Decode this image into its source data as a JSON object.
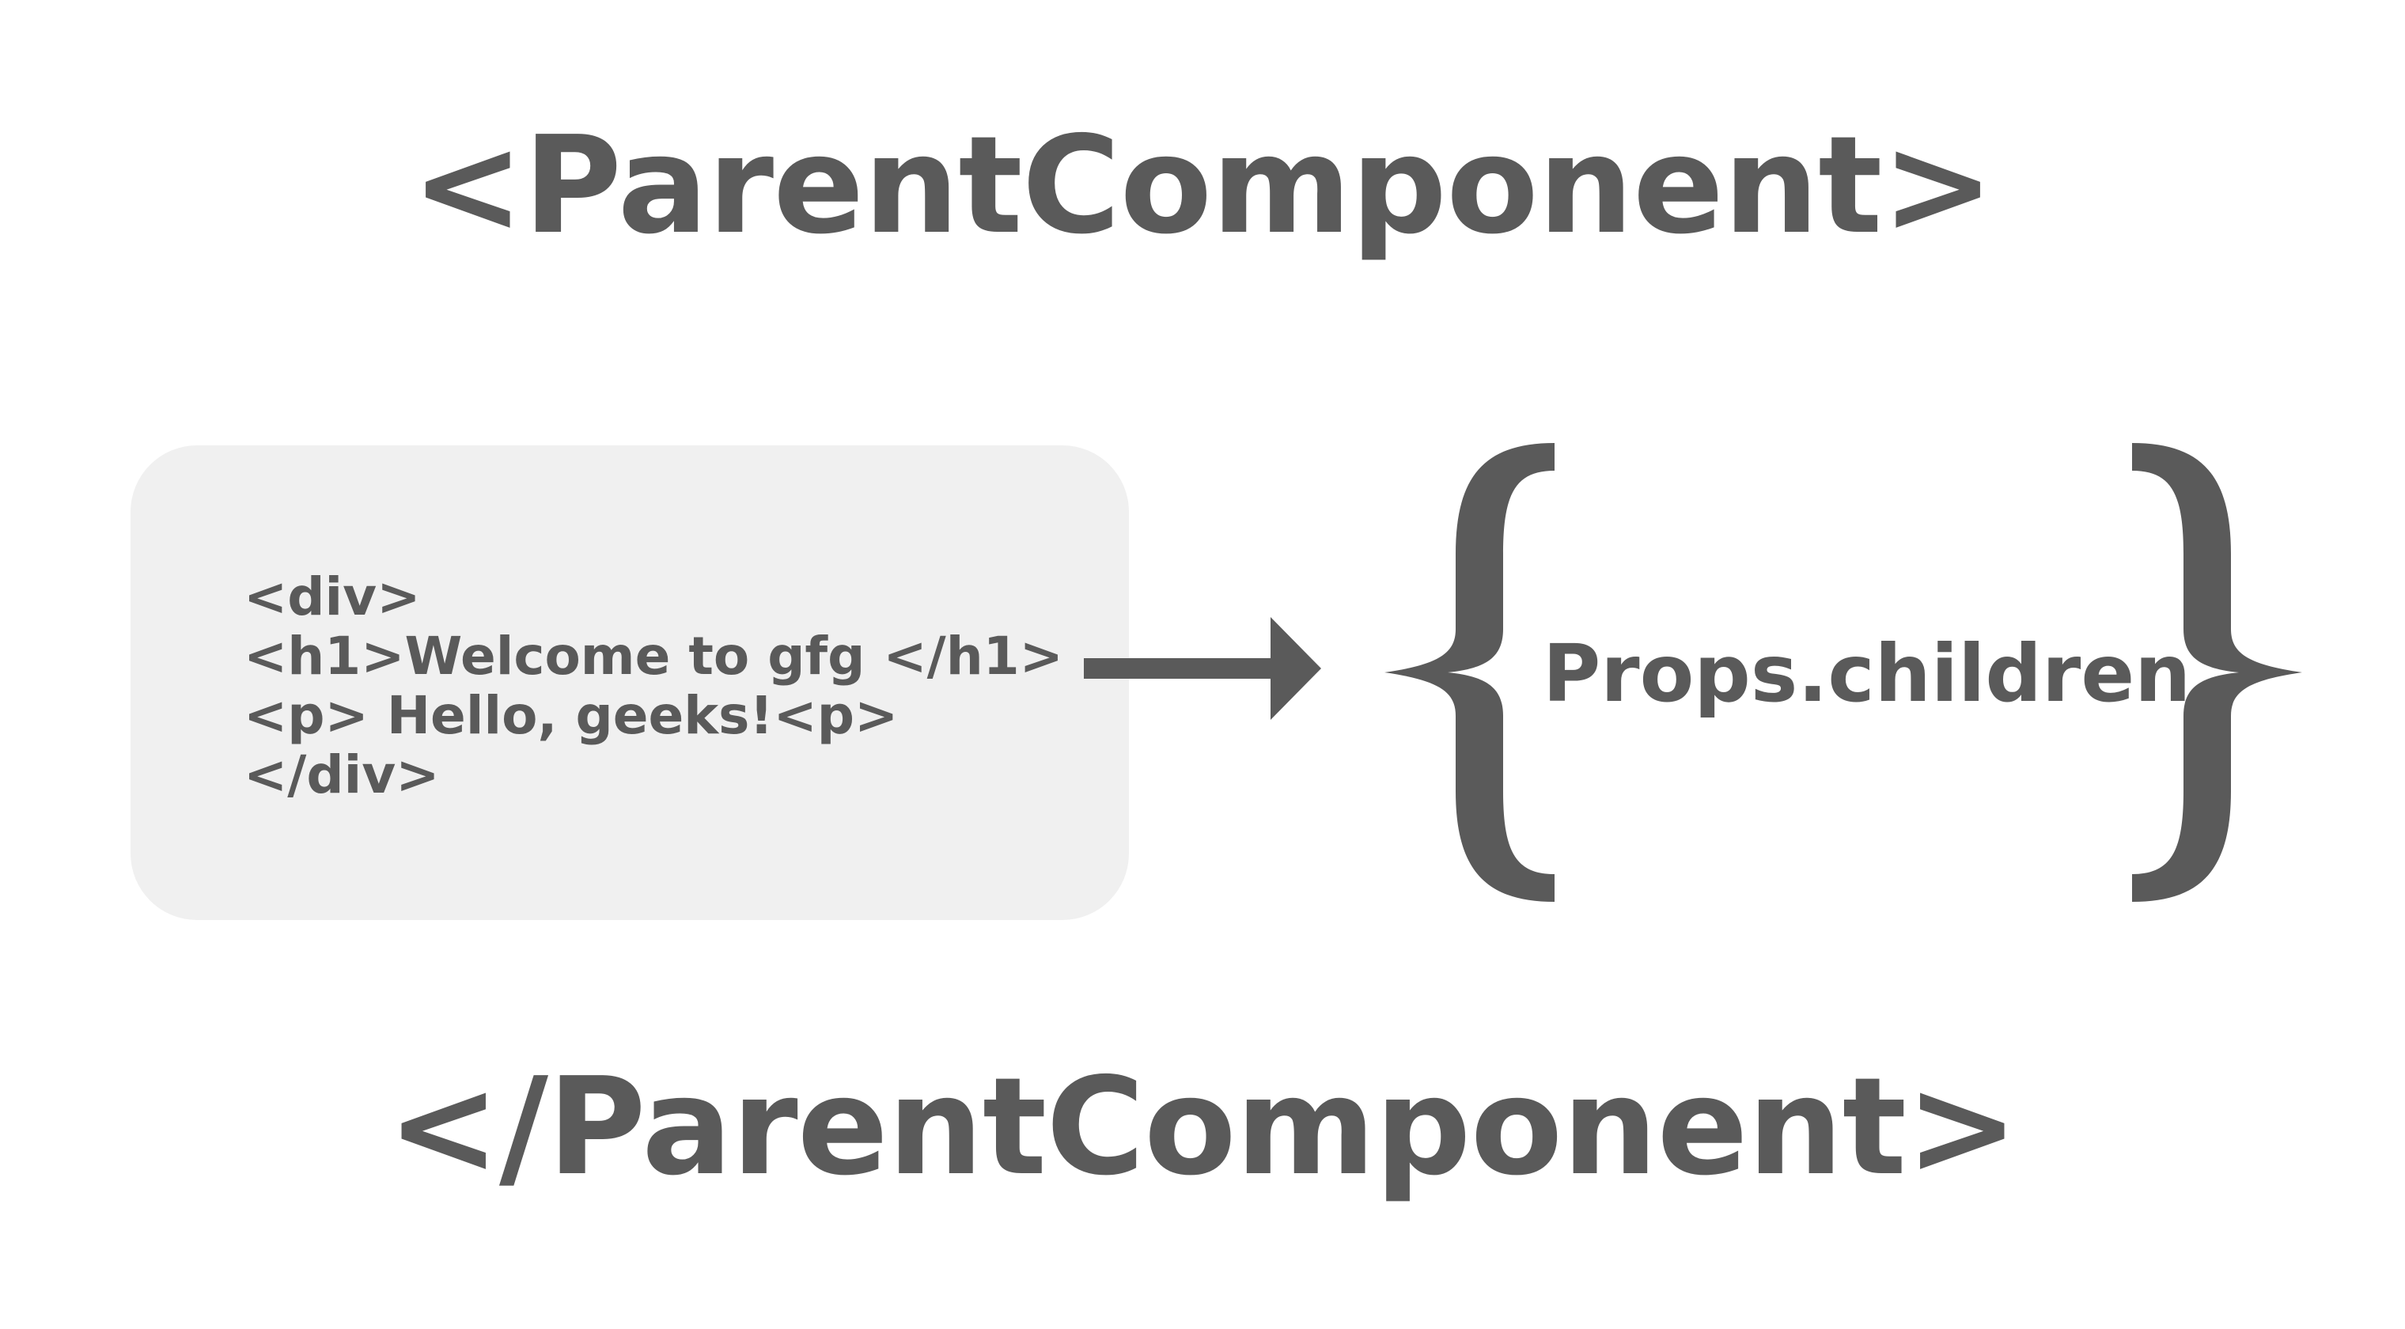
{
  "diagram": {
    "open_tag": "<ParentComponent>",
    "close_tag": "</ParentComponent>",
    "code_lines": [
      "<div>",
      "<h1>Welcome to gfg </h1>",
      "<p> Hello, geeks!<p>",
      "</div>"
    ],
    "props_label": "Props.children"
  },
  "colors": {
    "text": "#5a5a5a",
    "box_background": "#f0f0f0",
    "page_background": "#ffffff"
  },
  "icons": {
    "arrow": "right-arrow-icon",
    "brace_left": "left-curly-brace-icon",
    "brace_right": "right-curly-brace-icon"
  }
}
